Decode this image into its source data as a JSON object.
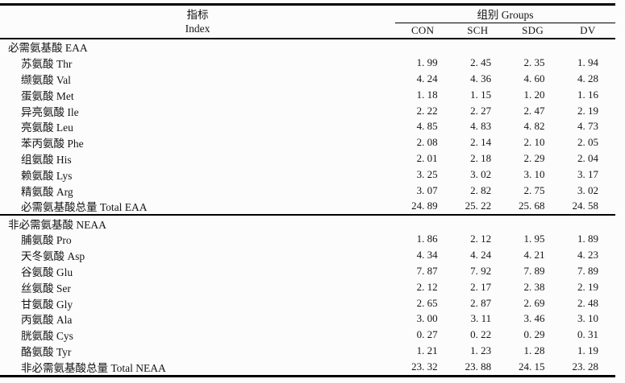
{
  "table": {
    "header": {
      "index_label_zh": "指标",
      "index_label_en": "Index",
      "groups_label": "组别 Groups",
      "group_columns": [
        "CON",
        "SCH",
        "SDG",
        "DV"
      ]
    },
    "sections": [
      {
        "title": "必需氨基酸 EAA",
        "rows": [
          {
            "label": "苏氨酸 Thr",
            "values": [
              1.99,
              2.45,
              2.35,
              1.94
            ]
          },
          {
            "label": "缬氨酸 Val",
            "values": [
              4.24,
              4.36,
              4.6,
              4.28
            ]
          },
          {
            "label": "蛋氨酸 Met",
            "values": [
              1.18,
              1.15,
              1.2,
              1.16
            ]
          },
          {
            "label": "异亮氨酸 Ile",
            "values": [
              2.22,
              2.27,
              2.47,
              2.19
            ]
          },
          {
            "label": "亮氨酸 Leu",
            "values": [
              4.85,
              4.83,
              4.82,
              4.73
            ]
          },
          {
            "label": "苯丙氨酸 Phe",
            "values": [
              2.08,
              2.14,
              2.1,
              2.05
            ]
          },
          {
            "label": "组氨酸 His",
            "values": [
              2.01,
              2.18,
              2.29,
              2.04
            ]
          },
          {
            "label": "赖氨酸 Lys",
            "values": [
              3.25,
              3.02,
              3.1,
              3.17
            ]
          },
          {
            "label": "精氨酸 Arg",
            "values": [
              3.07,
              2.82,
              2.75,
              3.02
            ]
          },
          {
            "label": "必需氨基酸总量 Total EAA",
            "values": [
              24.89,
              25.22,
              25.68,
              24.58
            ],
            "is_total": true
          }
        ]
      },
      {
        "title": "非必需氨基酸 NEAA",
        "rows": [
          {
            "label": "脯氨酸 Pro",
            "values": [
              1.86,
              2.12,
              1.95,
              1.89
            ]
          },
          {
            "label": "天冬氨酸 Asp",
            "values": [
              4.34,
              4.24,
              4.21,
              4.23
            ]
          },
          {
            "label": "谷氨酸 Glu",
            "values": [
              7.87,
              7.92,
              7.89,
              7.89
            ]
          },
          {
            "label": "丝氨酸 Ser",
            "values": [
              2.12,
              2.17,
              2.38,
              2.19
            ]
          },
          {
            "label": "甘氨酸 Gly",
            "values": [
              2.65,
              2.87,
              2.69,
              2.48
            ]
          },
          {
            "label": "丙氨酸 Ala",
            "values": [
              3.0,
              3.11,
              3.46,
              3.1
            ]
          },
          {
            "label": "胱氨酸 Cys",
            "values": [
              0.27,
              0.22,
              0.29,
              0.31
            ]
          },
          {
            "label": "酪氨酸 Tyr",
            "values": [
              1.21,
              1.23,
              1.28,
              1.19
            ]
          },
          {
            "label": "非必需氨基酸总量 Total NEAA",
            "values": [
              23.32,
              23.88,
              24.15,
              23.28
            ],
            "is_total": true
          }
        ]
      }
    ],
    "value_format": "two_decimals_space_after_point",
    "colors": {
      "text": "#151515",
      "rule": "#000000",
      "background": "#fcfcfc"
    }
  }
}
